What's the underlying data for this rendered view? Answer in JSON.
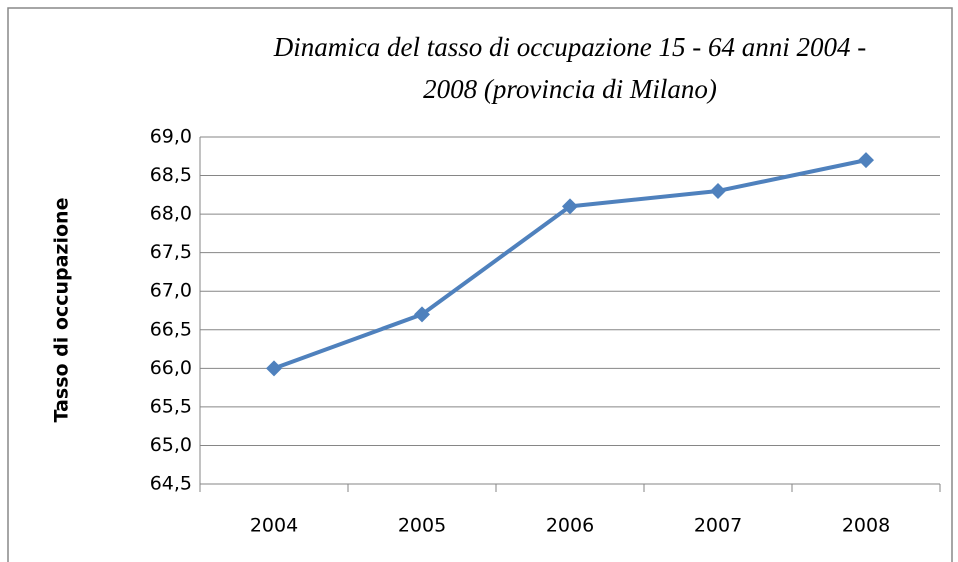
{
  "chart_data": {
    "type": "line",
    "title": [
      "Dinamica del tasso di occupazione  15 - 64 anni 2004 -",
      "2008 (provincia di Milano)"
    ],
    "y_label": "Tasso di occupazione",
    "categories": [
      "2004",
      "2005",
      "2006",
      "2007",
      "2008"
    ],
    "series": [
      {
        "name": "Tasso di occupazione",
        "color": "#4f81bd",
        "values": [
          66.0,
          66.7,
          68.1,
          68.3,
          68.7
        ]
      }
    ],
    "ylim": [
      64.5,
      69.0
    ],
    "yticks": [
      {
        "value": 64.5,
        "label": "64,5"
      },
      {
        "value": 65.0,
        "label": "65,0"
      },
      {
        "value": 65.5,
        "label": "65,5"
      },
      {
        "value": 66.0,
        "label": "66,0"
      },
      {
        "value": 66.5,
        "label": "66,5"
      },
      {
        "value": 67.0,
        "label": "67,0"
      },
      {
        "value": 67.5,
        "label": "67,5"
      },
      {
        "value": 68.0,
        "label": "68,0"
      },
      {
        "value": 68.5,
        "label": "68,5"
      },
      {
        "value": 69.0,
        "label": "69,0"
      }
    ],
    "grid": true,
    "legend": false
  }
}
